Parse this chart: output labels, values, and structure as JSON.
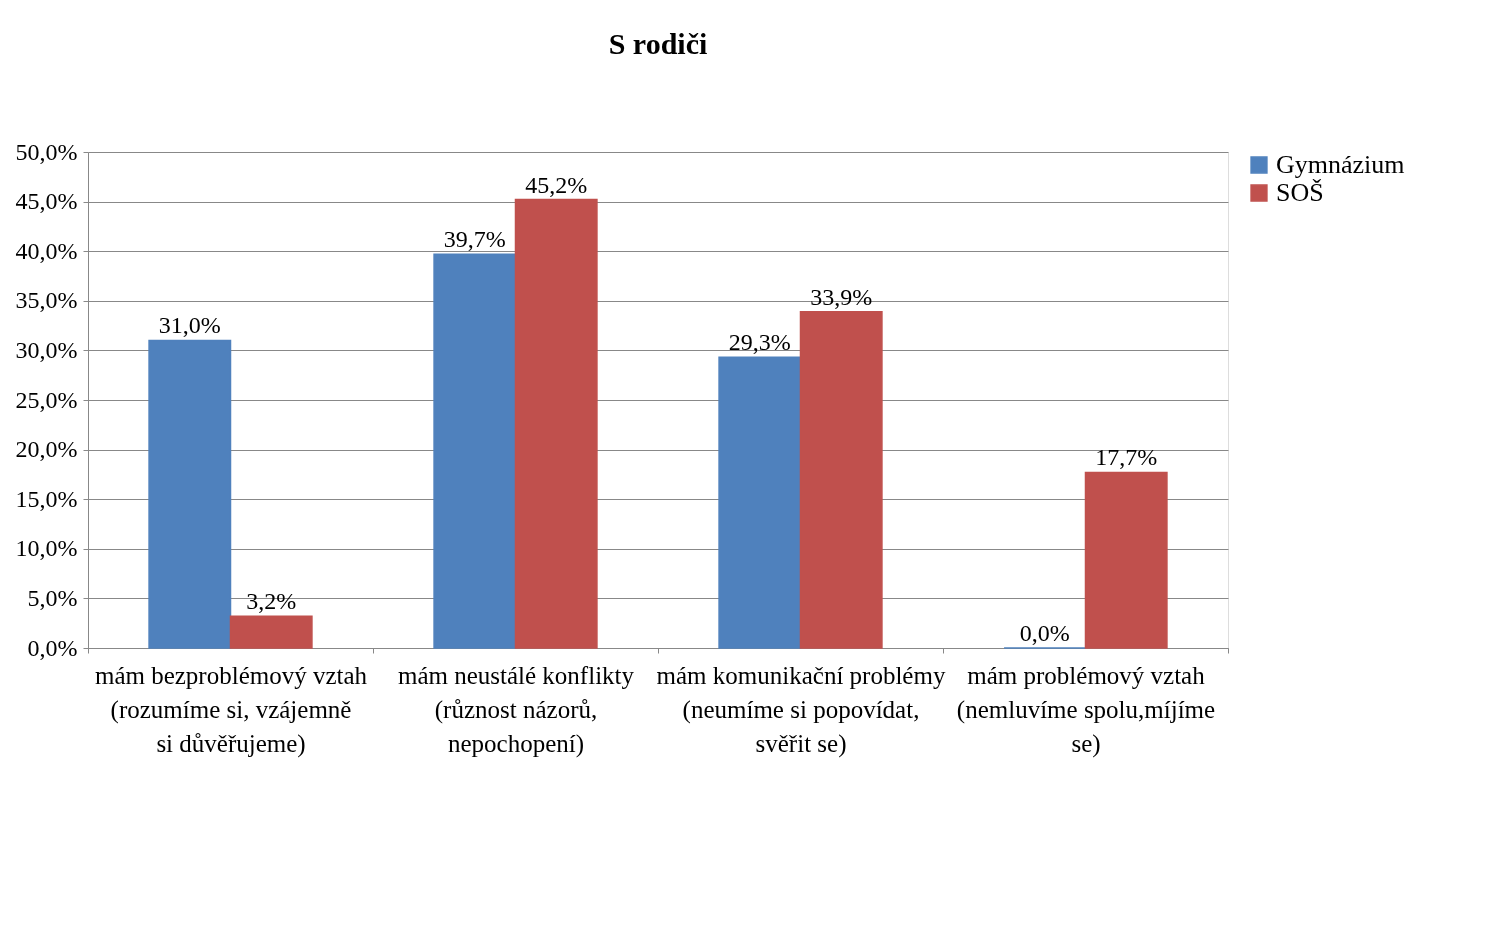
{
  "chart_data": {
    "type": "bar",
    "title": "S rodiči",
    "categories": [
      "mám bezproblémový vztah (rozumíme si, vzájemně si důvěřujeme)",
      "mám neustálé konflikty (různost názorů, nepochopení)",
      "mám komunikační problémy (neumíme si popovídat, svěřit se)",
      "mám problémový vztah (nemluvíme spolu,míjíme se)"
    ],
    "series": [
      {
        "name": "Gymnázium",
        "color": "#4f81bd",
        "values": [
          31.0,
          39.7,
          29.3,
          0.0
        ],
        "value_labels": [
          "31,0%",
          "39,7%",
          "29,3%",
          "0,0%"
        ]
      },
      {
        "name": "SOŠ",
        "color": "#c0504d",
        "values": [
          3.2,
          45.2,
          33.9,
          17.7
        ],
        "value_labels": [
          "3,2%",
          "45,2%",
          "33,9%",
          "17,7%"
        ]
      }
    ],
    "ylim": [
      0,
      50
    ],
    "yticks": [
      {
        "value": 0,
        "label": "0,0%"
      },
      {
        "value": 5,
        "label": "5,0%"
      },
      {
        "value": 10,
        "label": "10,0%"
      },
      {
        "value": 15,
        "label": "15,0%"
      },
      {
        "value": 20,
        "label": "20,0%"
      },
      {
        "value": 25,
        "label": "25,0%"
      },
      {
        "value": 30,
        "label": "30,0%"
      },
      {
        "value": 35,
        "label": "35,0%"
      },
      {
        "value": 40,
        "label": "40,0%"
      },
      {
        "value": 45,
        "label": "45,0%"
      },
      {
        "value": 50,
        "label": "50,0%"
      }
    ],
    "grid": "y",
    "legend": "right"
  }
}
